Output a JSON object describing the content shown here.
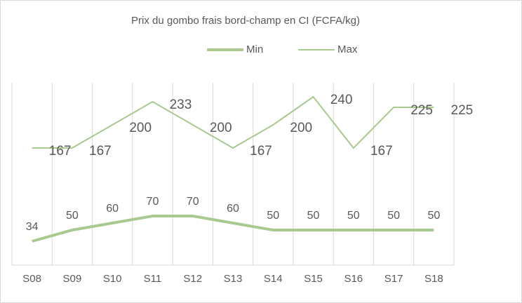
{
  "chart_data": {
    "type": "line",
    "title": "Prix du gombo frais bord-champ en CI (FCFA/kg)",
    "categories": [
      "S08",
      "S09",
      "S10",
      "S11",
      "S12",
      "S13",
      "S14",
      "S15",
      "S16",
      "S17",
      "S18"
    ],
    "series": [
      {
        "name": "Min",
        "color": "#a9c98f",
        "values": [
          34,
          50,
          60,
          70,
          70,
          60,
          50,
          50,
          50,
          50,
          50
        ]
      },
      {
        "name": "Max",
        "color": "#a9c98f",
        "values": [
          167,
          167,
          200,
          233,
          200,
          167,
          200,
          240,
          167,
          225,
          225
        ]
      }
    ],
    "ylim": [
      0,
      260
    ],
    "legend": "top",
    "grid": true
  }
}
